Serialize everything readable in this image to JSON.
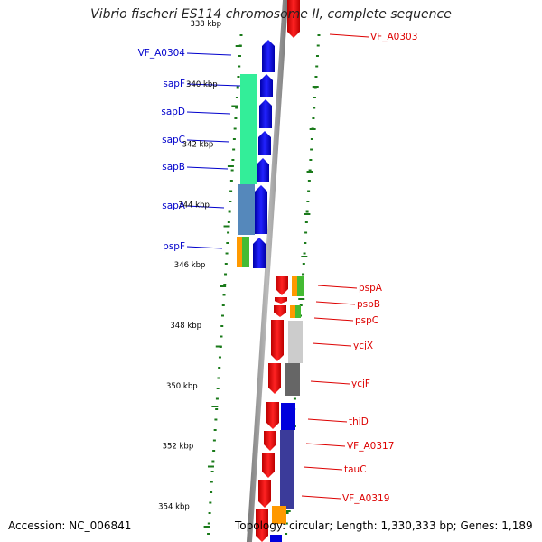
{
  "title": "Vibrio fischeri ES114 chromosome II, complete sequence",
  "footer": {
    "accession": "Accession: NC_006841",
    "summary": "Topology: circular; Length: 1,330,333 bp; Genes: 1,189"
  },
  "colors": {
    "forward_cds": "#0000dd",
    "reverse_cds": "#ee0000",
    "forward_label": "#0000cc",
    "reverse_label": "#dd0000",
    "backbone": "#888888",
    "tick": "#1a7a1a",
    "cog_green": "#33ee99",
    "cog_steelblue": "#5588bb",
    "cog_orange": "#ff9900",
    "cog_lime": "#44bb33",
    "cog_lightgray": "#cccccc",
    "cog_darkgray": "#666666",
    "cog_navy": "#3b3b9a"
  },
  "scale_labels": [
    "338 kbp",
    "340 kbp",
    "342 kbp",
    "344 kbp",
    "346 kbp",
    "348 kbp",
    "350 kbp",
    "352 kbp",
    "354 kbp"
  ],
  "forward_genes": [
    "VF_A0304",
    "sapF",
    "sapD",
    "sapC",
    "sapB",
    "sapA",
    "pspF"
  ],
  "reverse_genes": [
    "VF_A0303",
    "pspA",
    "pspB",
    "pspC",
    "ycjX",
    "ycjF",
    "thiD",
    "VF_A0317",
    "tauC",
    "VF_A0319"
  ]
}
